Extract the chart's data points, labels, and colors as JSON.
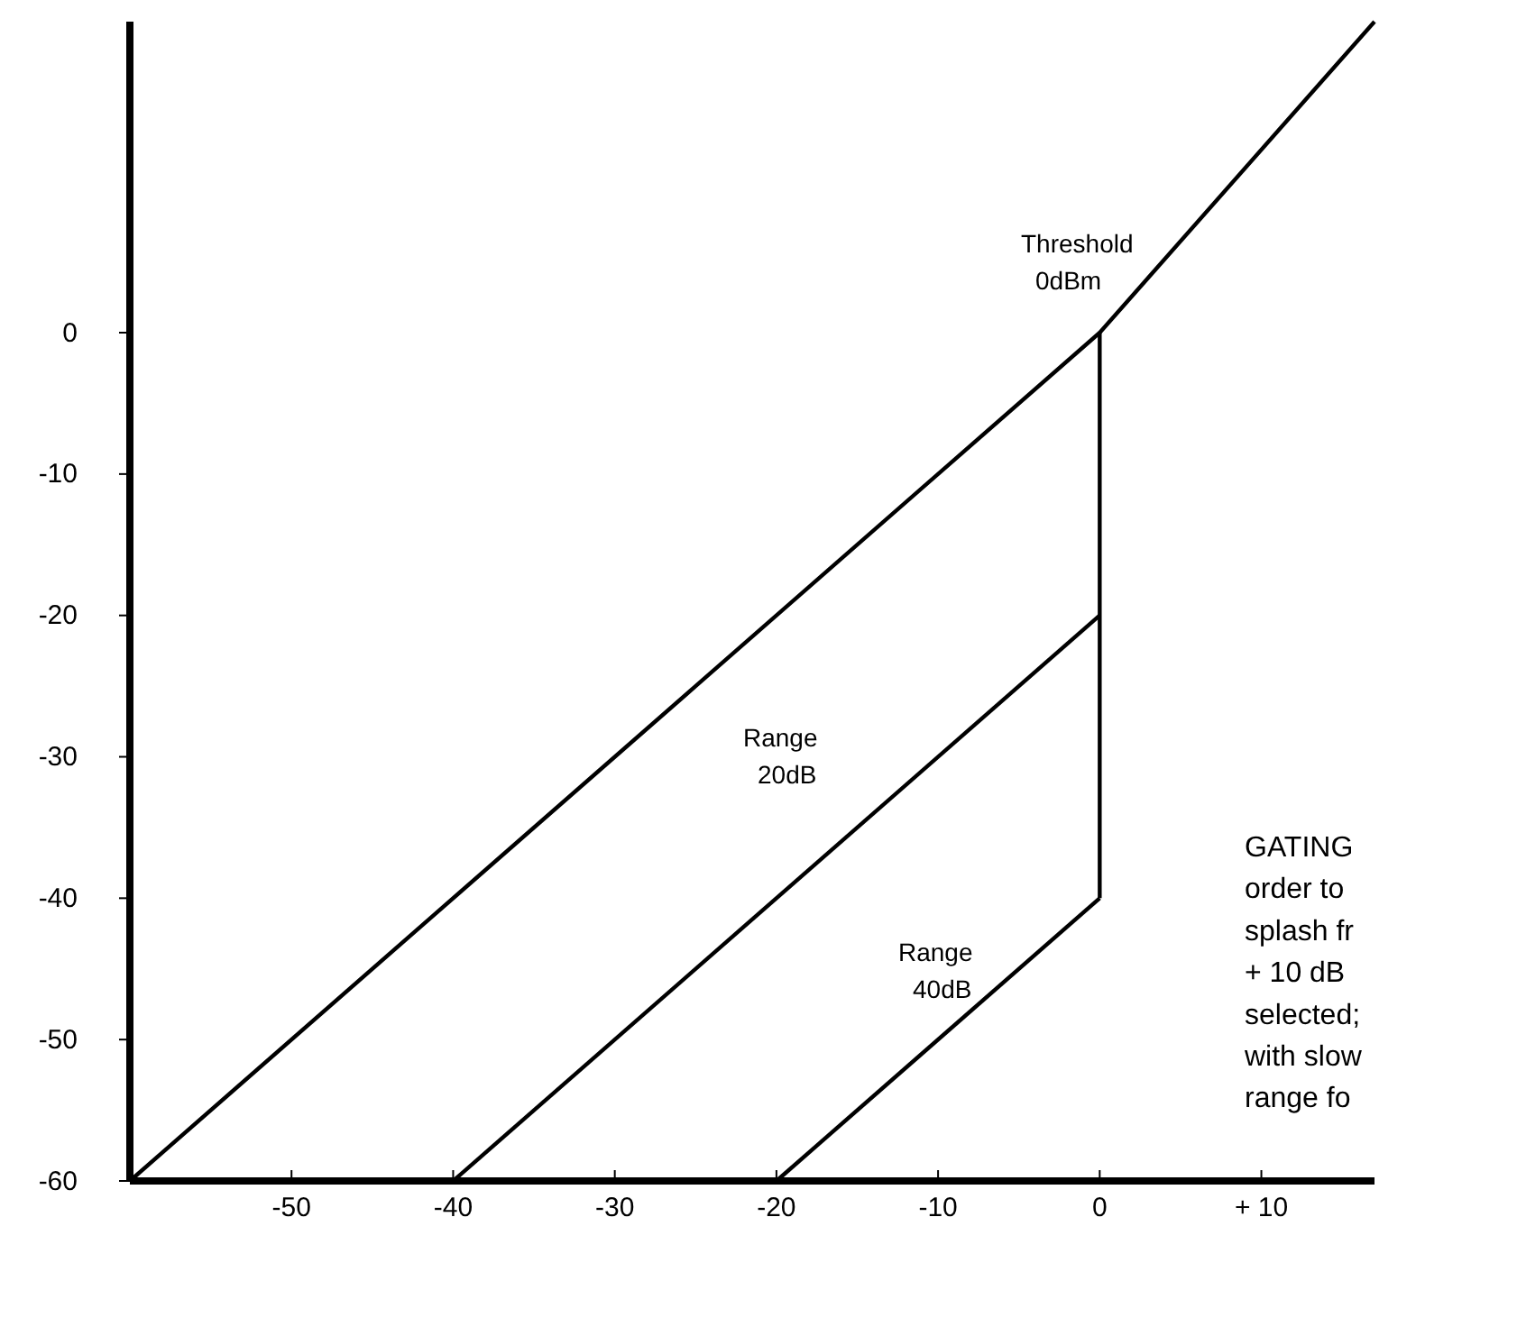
{
  "chart_data": {
    "type": "line",
    "xlim": [
      -60,
      17
    ],
    "ylim": [
      -60,
      22
    ],
    "xticks": [
      {
        "value": -50,
        "label": "-50"
      },
      {
        "value": -40,
        "label": "-40"
      },
      {
        "value": -30,
        "label": "-30"
      },
      {
        "value": -20,
        "label": "-20"
      },
      {
        "value": -10,
        "label": "-10"
      },
      {
        "value": 0,
        "label": "0"
      },
      {
        "value": 10,
        "label": "+ 10"
      }
    ],
    "yticks": [
      -60,
      -50,
      -40,
      -30,
      -20,
      -10,
      0
    ],
    "grid": false,
    "marker": "none",
    "line_style": "solid",
    "series": [
      {
        "color": "#000000",
        "x": [
          -60,
          0,
          17
        ],
        "values": [
          -60,
          0,
          22
        ]
      },
      {
        "color": "#000000",
        "x": [
          -40,
          0
        ],
        "values": [
          -60,
          -20
        ]
      },
      {
        "color": "#000000",
        "x": [
          -20,
          0
        ],
        "values": [
          -60,
          -40
        ]
      },
      {
        "color": "#000000",
        "x": [
          0,
          0
        ],
        "values": [
          -40,
          0
        ]
      }
    ],
    "annotations": [
      "Threshold\n0dBm",
      "Range\n20dB",
      "Range\n40dB",
      "GATING\norder to\nsplash fr\n+ 10 dB\nselected;\nwith slow\nrange fo"
    ]
  }
}
